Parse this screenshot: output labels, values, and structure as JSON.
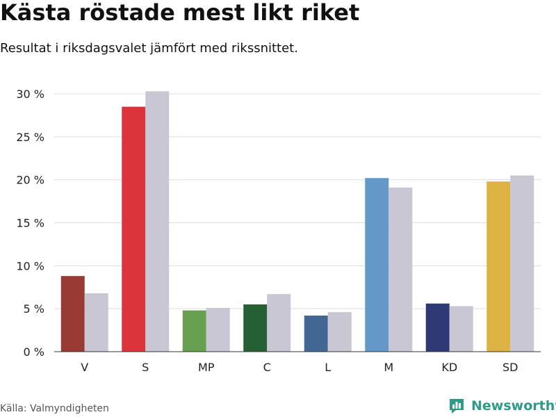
{
  "header": {
    "title": "Kästa röstade mest likt riket",
    "subtitle": "Resultat i riksdagsvalet jämfört med rikssnittet."
  },
  "footer": {
    "source": "Källa: Valmyndigheten",
    "brand": "Newsworthy",
    "brand_icon": "bar-chart-logo-icon",
    "brand_color": "#2f9a88"
  },
  "chart_data": {
    "type": "bar",
    "title": "Kästa röstade mest likt riket",
    "subtitle": "Resultat i riksdagsvalet jämfört med rikssnittet.",
    "xlabel": "",
    "ylabel": "",
    "categories": [
      "V",
      "S",
      "MP",
      "C",
      "L",
      "M",
      "KD",
      "SD"
    ],
    "series": [
      {
        "values": [
          8.8,
          28.5,
          4.8,
          5.5,
          4.2,
          20.2,
          5.6,
          19.8
        ],
        "colors": [
          "#9a3a35",
          "#dc343b",
          "#68a051",
          "#246034",
          "#426792",
          "#6398c8",
          "#2f3a74",
          "#ddb443"
        ]
      },
      {
        "values": [
          6.8,
          30.3,
          5.1,
          6.7,
          4.6,
          19.1,
          5.3,
          20.5
        ],
        "colors": [
          "#c9c7d4",
          "#c9c7d4",
          "#c9c7d4",
          "#c9c7d4",
          "#c9c7d4",
          "#c9c7d4",
          "#c9c7d4",
          "#c9c7d4"
        ]
      }
    ],
    "y_ticks": [
      0,
      5,
      10,
      15,
      20,
      25,
      30
    ],
    "y_tick_labels": [
      "0 %",
      "5 %",
      "10 %",
      "15 %",
      "20 %",
      "25 %",
      "30 %"
    ],
    "ylim": [
      0,
      30
    ],
    "grid": true,
    "legend": "none",
    "gridline_color": "#dddddd",
    "axis_color": "#333333"
  }
}
